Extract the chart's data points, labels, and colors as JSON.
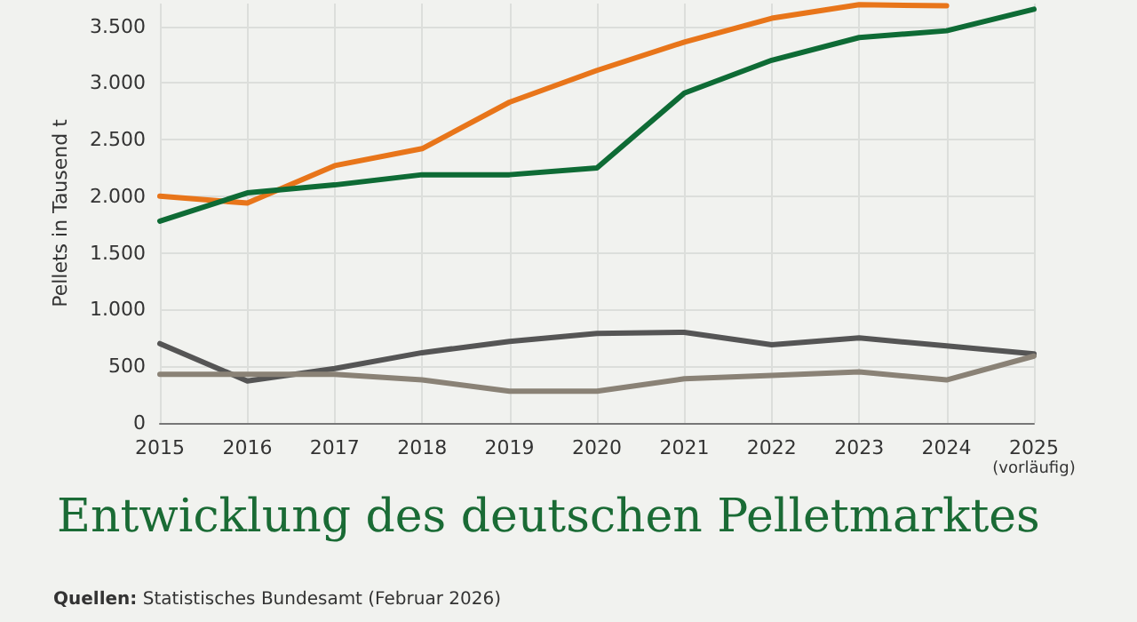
{
  "chart_data": {
    "type": "line",
    "title": "Entwicklung des deutschen Pelletmarktes",
    "ylabel": "Pellets in Tausend t",
    "annotations": [
      "Quellen: Statistisches Bundesamt (Februar 2026)"
    ],
    "categories": [
      "2015",
      "2016",
      "2017",
      "2018",
      "2019",
      "2020",
      "2021",
      "2022",
      "2023",
      "2024",
      "2025\n(vorläufig)"
    ],
    "series": [
      {
        "color": "#e8751a",
        "values": [
          2000,
          1940,
          2270,
          2420,
          2830,
          3110,
          3360,
          3570,
          3690,
          3680,
          null
        ]
      },
      {
        "color": "#0e6b35",
        "values": [
          1780,
          2030,
          2100,
          2190,
          2190,
          2250,
          2910,
          3200,
          3400,
          3460,
          3650
        ]
      },
      {
        "color": "#555555",
        "values": [
          700,
          370,
          480,
          620,
          720,
          790,
          800,
          690,
          750,
          680,
          610
        ]
      },
      {
        "color": "#8a8276",
        "values": [
          430,
          430,
          430,
          380,
          280,
          280,
          390,
          420,
          450,
          380,
          590
        ]
      }
    ],
    "ylim": [
      0,
      3700
    ],
    "yticks": [
      {
        "value": 0,
        "label": "0"
      },
      {
        "value": 500,
        "label": "500"
      },
      {
        "value": 1000,
        "label": "1.000"
      },
      {
        "value": 1500,
        "label": "1.500"
      },
      {
        "value": 2000,
        "label": "2.000"
      },
      {
        "value": 2500,
        "label": "2.500"
      },
      {
        "value": 3000,
        "label": "3.000"
      },
      {
        "value": 3500,
        "label": "3.500"
      }
    ],
    "grid": true,
    "marker": "none",
    "line_style": "solid"
  }
}
